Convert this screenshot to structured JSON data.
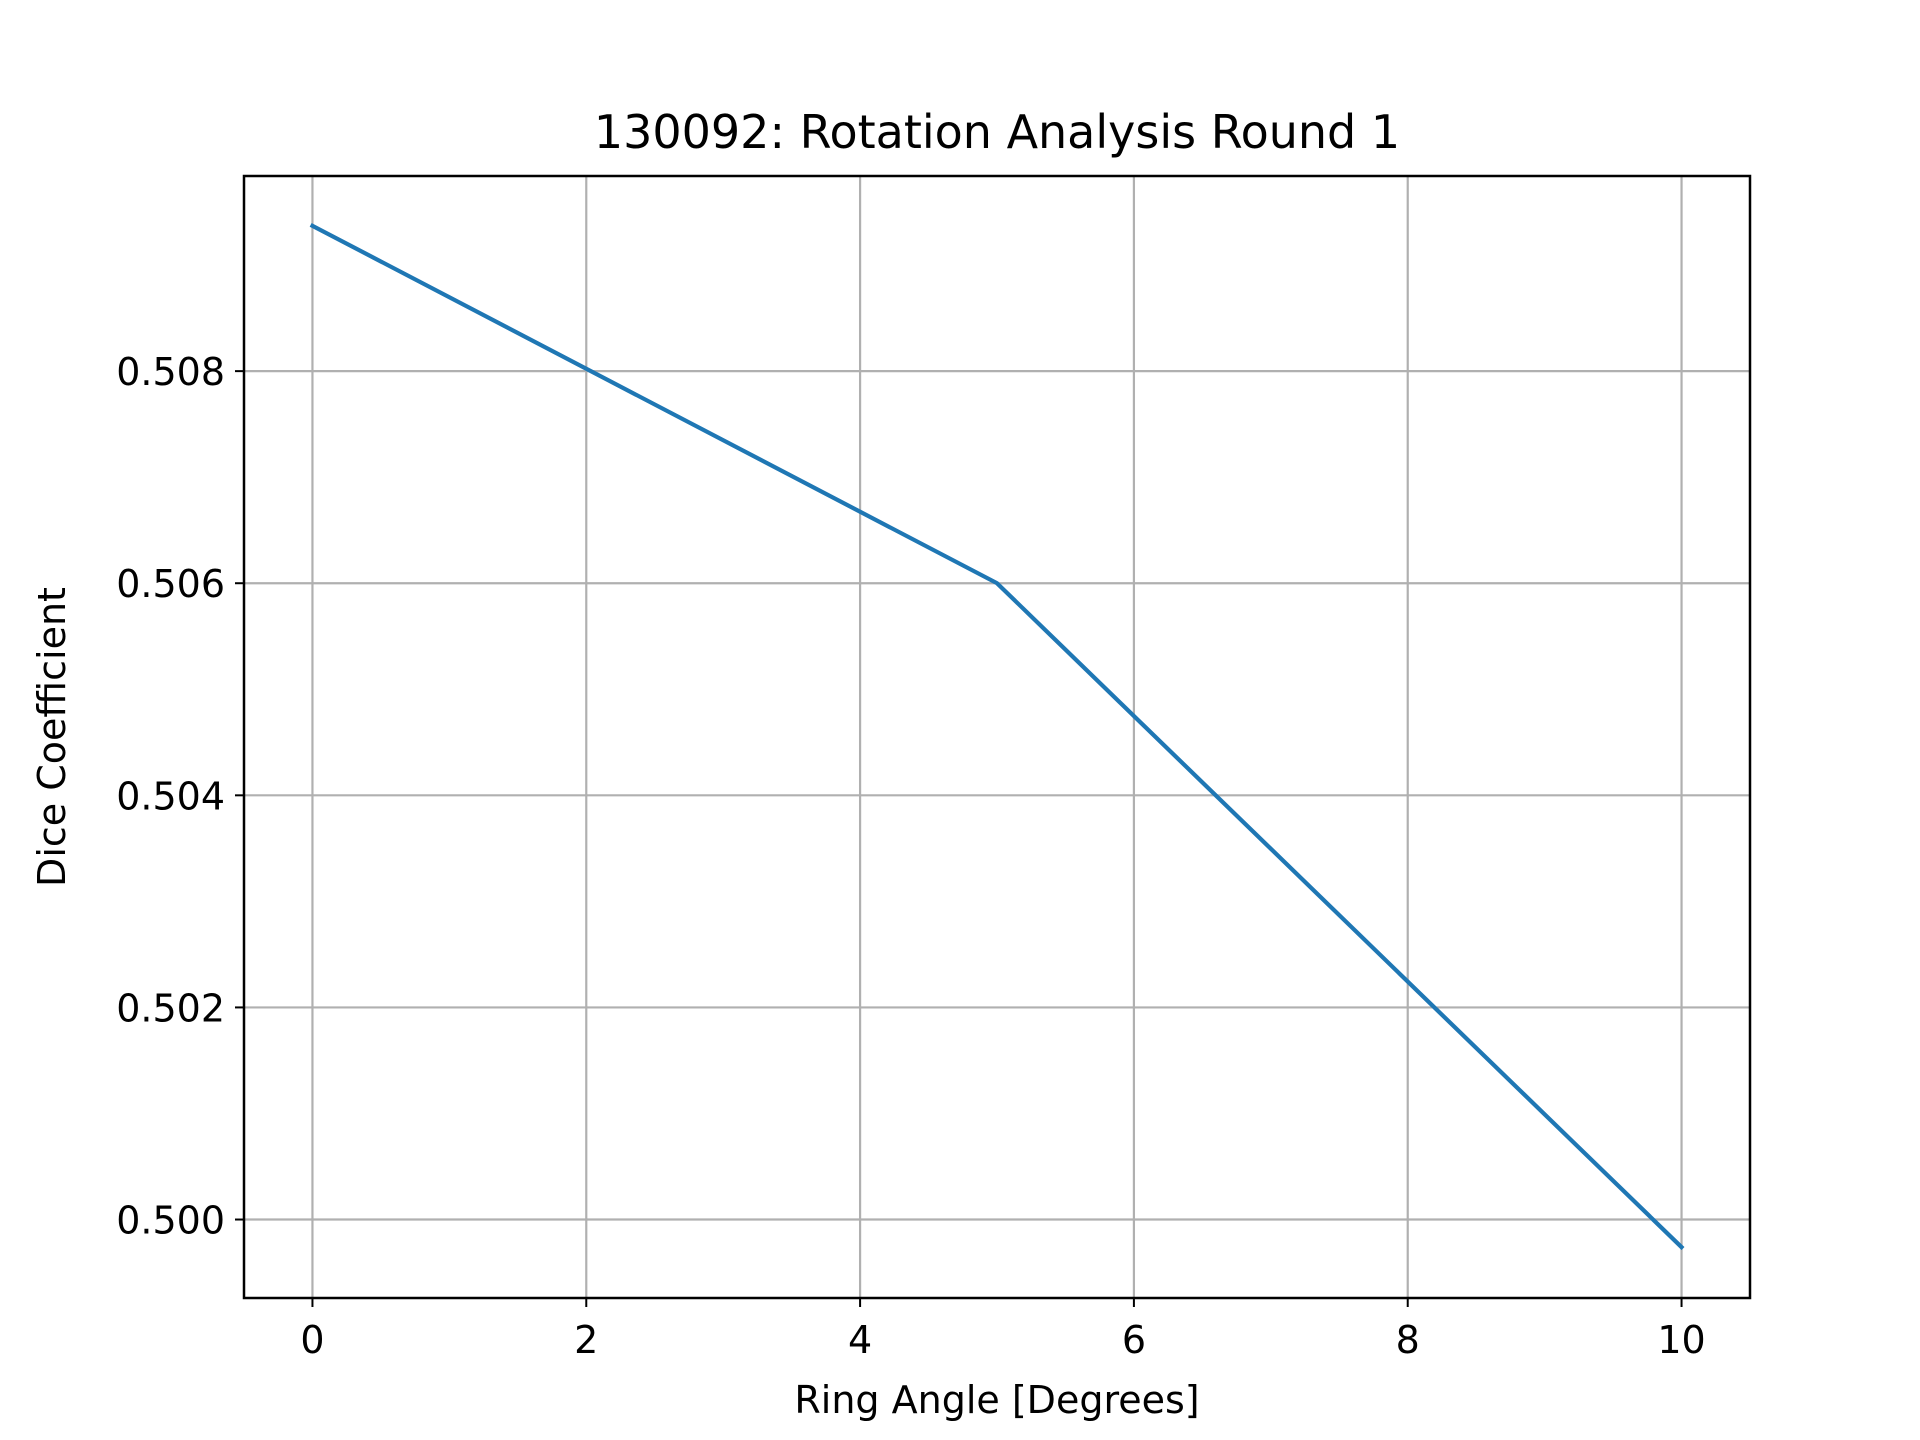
{
  "chart_data": {
    "type": "line",
    "title": "130092: Rotation Analysis Round 1",
    "xlabel": "Ring Angle [Degrees]",
    "ylabel": "Dice Coefficient",
    "xlim": [
      -0.5,
      10.5
    ],
    "ylim": [
      0.49926,
      0.50984
    ],
    "xticks": [
      0,
      2,
      4,
      6,
      8,
      10
    ],
    "xtick_labels": [
      "0",
      "2",
      "4",
      "6",
      "8",
      "10"
    ],
    "yticks": [
      0.5,
      0.502,
      0.504,
      0.506,
      0.508
    ],
    "ytick_labels": [
      "0.500",
      "0.502",
      "0.504",
      "0.506",
      "0.508"
    ],
    "grid": true,
    "series": [
      {
        "color": "#1f77b4",
        "x": [
          0,
          5,
          10
        ],
        "y": [
          0.50937,
          0.506,
          0.49974
        ]
      }
    ]
  }
}
